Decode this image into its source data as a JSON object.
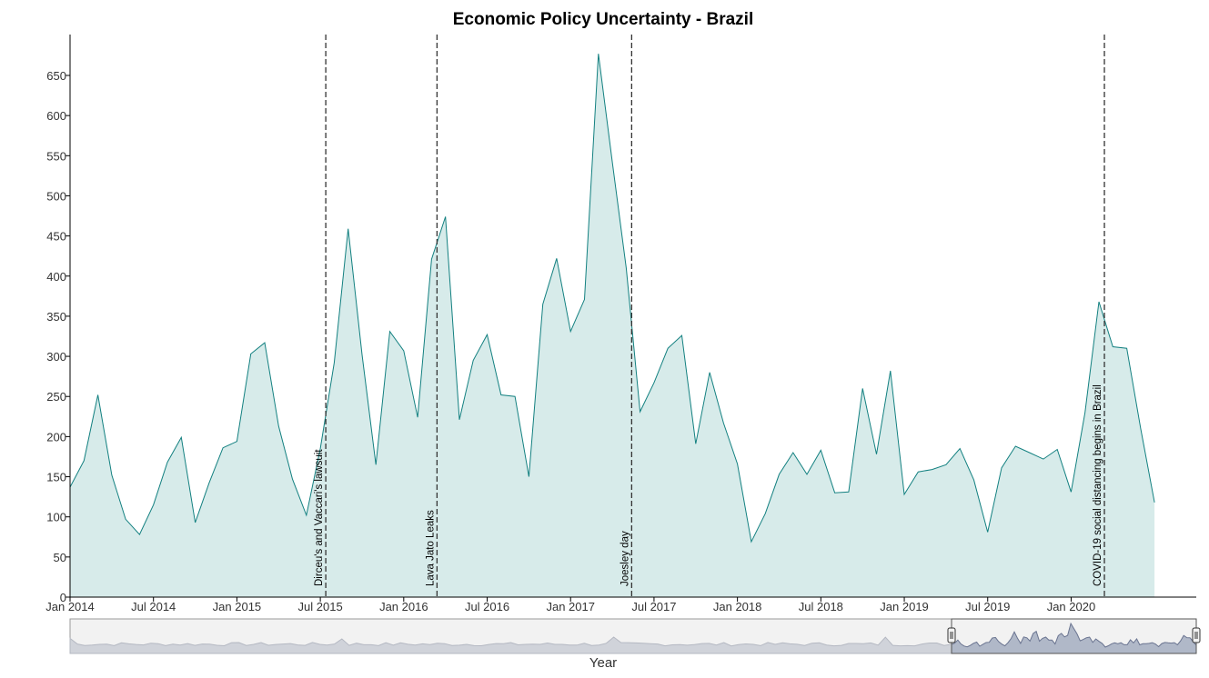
{
  "chart_data": {
    "type": "area",
    "title": "Economic Policy Uncertainty - Brazil",
    "xlabel": "Year",
    "ylabel": "",
    "ylim": [
      0,
      700
    ],
    "yticks": [
      0,
      50,
      100,
      150,
      200,
      250,
      300,
      350,
      400,
      450,
      500,
      550,
      600,
      650
    ],
    "xticks": [
      "Jan 2014",
      "Jul 2014",
      "Jan 2015",
      "Jul 2015",
      "Jan 2016",
      "Jul 2016",
      "Jan 2017",
      "Jul 2017",
      "Jan 2018",
      "Jul 2018",
      "Jan 2019",
      "Jul 2019",
      "Jan 2020"
    ],
    "xlim": [
      "2014-01",
      "2020-10"
    ],
    "grid": false,
    "colors": {
      "line": "#138080",
      "fill": "#d7ebea",
      "annotation": "#333333",
      "navigator_fill": "#b0b8c8",
      "navigator_line": "#6a7490"
    },
    "x": [
      "2014-01",
      "2014-02",
      "2014-03",
      "2014-04",
      "2014-05",
      "2014-06",
      "2014-07",
      "2014-08",
      "2014-09",
      "2014-10",
      "2014-11",
      "2014-12",
      "2015-01",
      "2015-02",
      "2015-03",
      "2015-04",
      "2015-05",
      "2015-06",
      "2015-07",
      "2015-08",
      "2015-09",
      "2015-10",
      "2015-11",
      "2015-12",
      "2016-01",
      "2016-02",
      "2016-03",
      "2016-04",
      "2016-05",
      "2016-06",
      "2016-07",
      "2016-08",
      "2016-09",
      "2016-10",
      "2016-11",
      "2016-12",
      "2017-01",
      "2017-02",
      "2017-03",
      "2017-04",
      "2017-05",
      "2017-06",
      "2017-07",
      "2017-08",
      "2017-09",
      "2017-10",
      "2017-11",
      "2017-12",
      "2018-01",
      "2018-02",
      "2018-03",
      "2018-04",
      "2018-05",
      "2018-06",
      "2018-07",
      "2018-08",
      "2018-09",
      "2018-10",
      "2018-11",
      "2018-12",
      "2019-01",
      "2019-02",
      "2019-03",
      "2019-04",
      "2019-05",
      "2019-06",
      "2019-07",
      "2019-08",
      "2019-09",
      "2019-10",
      "2019-11",
      "2019-12",
      "2020-01",
      "2020-02",
      "2020-03",
      "2020-04",
      "2020-05",
      "2020-06",
      "2020-07"
    ],
    "series": [
      {
        "values": [
          137,
          170,
          252,
          152,
          97,
          78,
          115,
          168,
          199,
          93,
          142,
          186,
          194,
          303,
          317,
          213,
          147,
          102,
          185,
          292,
          459,
          302,
          165,
          331,
          307,
          224,
          421,
          474,
          221,
          295,
          327,
          252,
          250,
          150,
          365,
          422,
          331,
          371,
          677,
          542,
          410,
          231,
          267,
          310,
          326,
          191,
          280,
          217,
          166,
          69,
          104,
          153,
          180,
          153,
          183,
          130,
          131,
          260,
          178,
          282,
          128,
          156,
          159,
          165,
          185,
          146,
          81,
          161,
          188,
          180,
          172,
          184,
          131,
          230,
          368,
          312,
          310,
          210,
          118
        ]
      }
    ],
    "annotations": [
      {
        "x": "2015-07",
        "label": "Dirceu's and Vaccari's lawsuit"
      },
      {
        "x": "2016-03",
        "label": "Lava Jato Leaks"
      },
      {
        "x": "2017-05",
        "label": "Joesley day"
      },
      {
        "x": "2020-03",
        "label": "COVID-19 social distancing begins in Brazil"
      }
    ]
  }
}
